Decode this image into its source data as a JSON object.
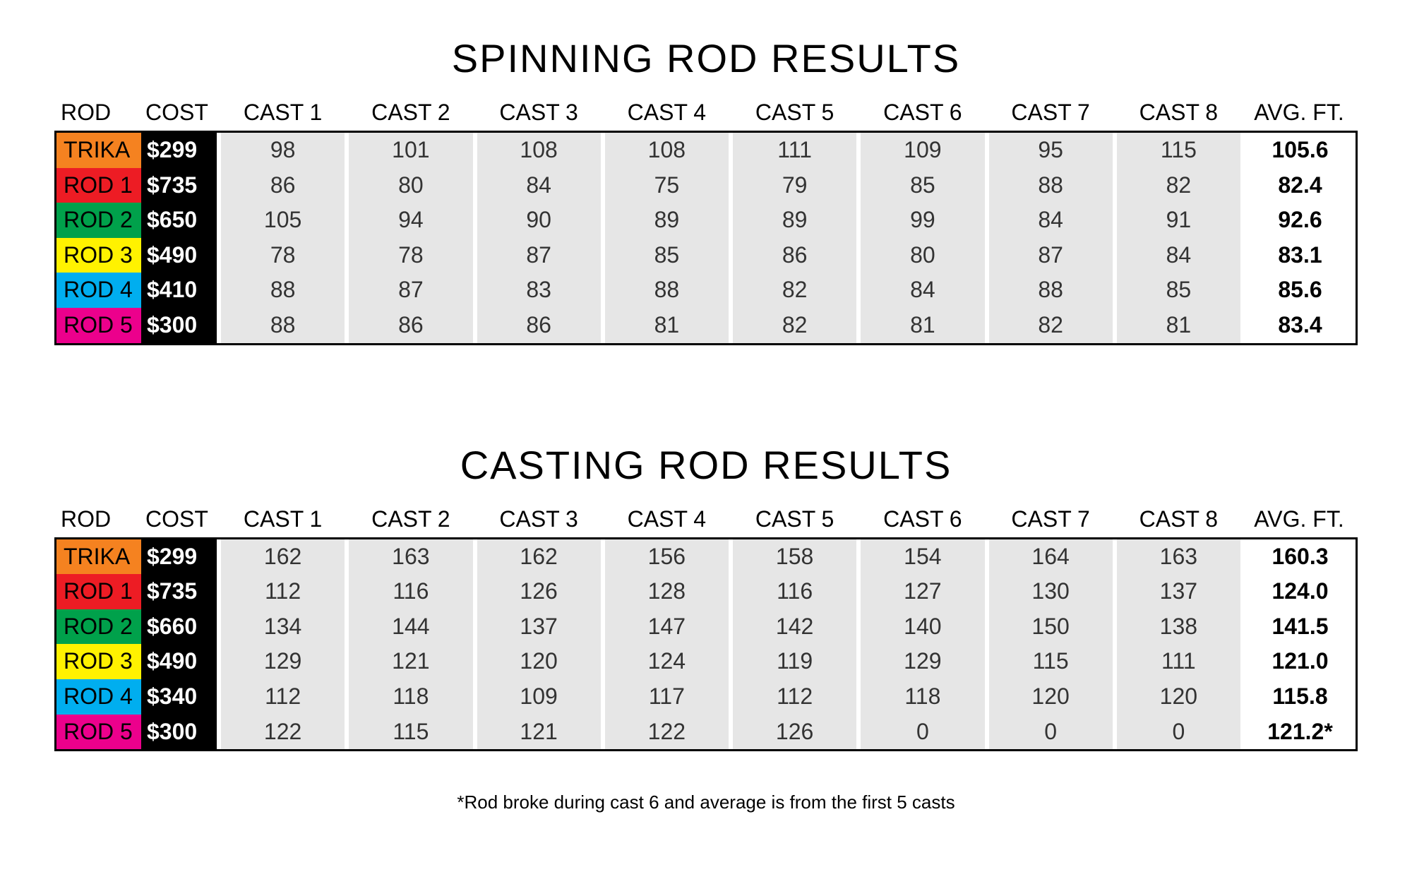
{
  "colors": {
    "row_bg": "#e6e6e6",
    "cost_bg": "#000000",
    "cost_text": "#ffffff",
    "text": "#000000",
    "rod_colors": {
      "TRIKA": "#f58220",
      "ROD 1": "#ed1c24",
      "ROD 2": "#00a14b",
      "ROD 3": "#fff200",
      "ROD 4": "#00aeef",
      "ROD 5": "#ec008c"
    }
  },
  "tables": [
    {
      "title": "SPINNING ROD RESULTS",
      "columns": [
        "ROD",
        "COST",
        "CAST 1",
        "CAST 2",
        "CAST 3",
        "CAST 4",
        "CAST 5",
        "CAST 6",
        "CAST 7",
        "CAST 8",
        "AVG. FT."
      ],
      "rows": [
        {
          "rod": "TRIKA",
          "cost": "$299",
          "casts": [
            "98",
            "101",
            "108",
            "108",
            "111",
            "109",
            "95",
            "115"
          ],
          "avg": "105.6"
        },
        {
          "rod": "ROD 1",
          "cost": "$735",
          "casts": [
            "86",
            "80",
            "84",
            "75",
            "79",
            "85",
            "88",
            "82"
          ],
          "avg": "82.4"
        },
        {
          "rod": "ROD 2",
          "cost": "$650",
          "casts": [
            "105",
            "94",
            "90",
            "89",
            "89",
            "99",
            "84",
            "91"
          ],
          "avg": "92.6"
        },
        {
          "rod": "ROD 3",
          "cost": "$490",
          "casts": [
            "78",
            "78",
            "87",
            "85",
            "86",
            "80",
            "87",
            "84"
          ],
          "avg": "83.1"
        },
        {
          "rod": "ROD 4",
          "cost": "$410",
          "casts": [
            "88",
            "87",
            "83",
            "88",
            "82",
            "84",
            "88",
            "85"
          ],
          "avg": "85.6"
        },
        {
          "rod": "ROD 5",
          "cost": "$300",
          "casts": [
            "88",
            "86",
            "86",
            "81",
            "82",
            "81",
            "82",
            "81"
          ],
          "avg": "83.4"
        }
      ],
      "footnote": ""
    },
    {
      "title": "CASTING ROD RESULTS",
      "columns": [
        "ROD",
        "COST",
        "CAST 1",
        "CAST 2",
        "CAST 3",
        "CAST 4",
        "CAST 5",
        "CAST 6",
        "CAST 7",
        "CAST 8",
        "AVG. FT."
      ],
      "rows": [
        {
          "rod": "TRIKA",
          "cost": "$299",
          "casts": [
            "162",
            "163",
            "162",
            "156",
            "158",
            "154",
            "164",
            "163"
          ],
          "avg": "160.3"
        },
        {
          "rod": "ROD 1",
          "cost": "$735",
          "casts": [
            "112",
            "116",
            "126",
            "128",
            "116",
            "127",
            "130",
            "137"
          ],
          "avg": "124.0"
        },
        {
          "rod": "ROD 2",
          "cost": "$660",
          "casts": [
            "134",
            "144",
            "137",
            "147",
            "142",
            "140",
            "150",
            "138"
          ],
          "avg": "141.5"
        },
        {
          "rod": "ROD 3",
          "cost": "$490",
          "casts": [
            "129",
            "121",
            "120",
            "124",
            "119",
            "129",
            "115",
            "111"
          ],
          "avg": "121.0"
        },
        {
          "rod": "ROD 4",
          "cost": "$340",
          "casts": [
            "112",
            "118",
            "109",
            "117",
            "112",
            "118",
            "120",
            "120"
          ],
          "avg": "115.8"
        },
        {
          "rod": "ROD 5",
          "cost": "$300",
          "casts": [
            "122",
            "115",
            "121",
            "122",
            "126",
            "0",
            "0",
            "0"
          ],
          "avg": "121.2*"
        }
      ],
      "footnote": "*Rod broke during cast 6 and average is from the first 5 casts"
    }
  ]
}
